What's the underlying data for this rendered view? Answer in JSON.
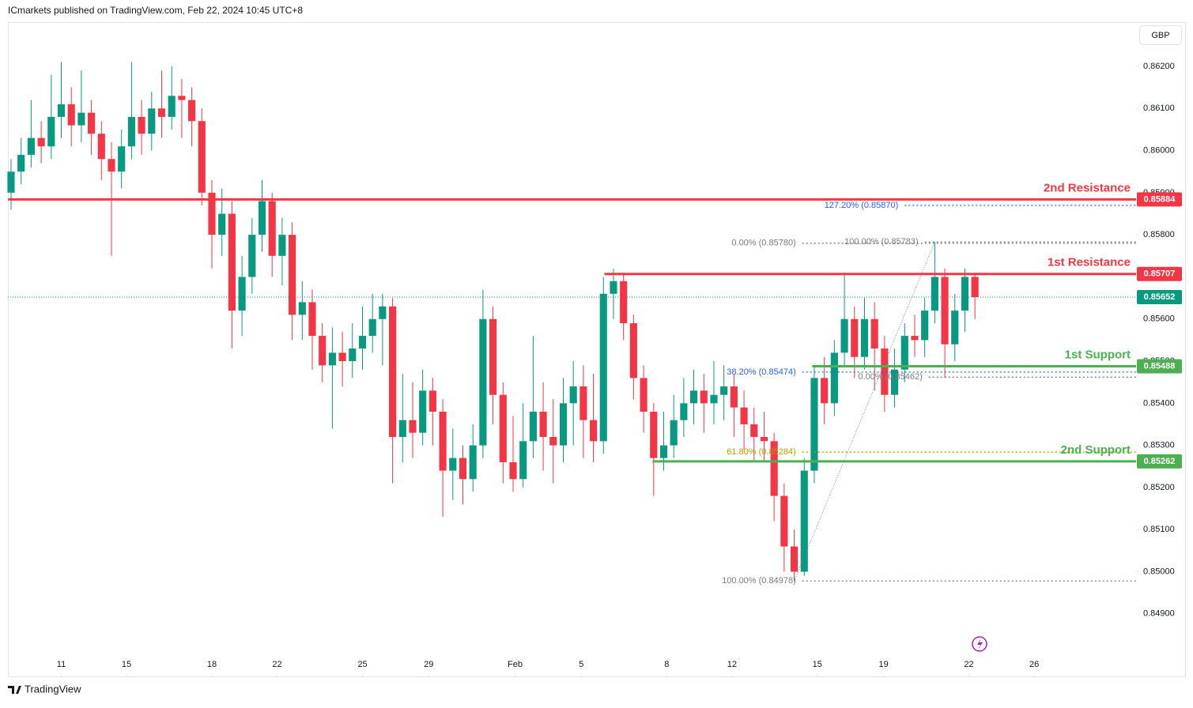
{
  "chart_data": {
    "type": "candlestick",
    "header": "ICmarkets published on TradingView.com, Feb 22, 2024 10:45 UTC+8",
    "currency": "GBP",
    "brand": "TradingView",
    "up_color": "#089981",
    "down_color": "#f23645",
    "ylim": [
      0.84804,
      0.86305
    ],
    "yticks": [
      {
        "value": 0.849,
        "label": "0.84900"
      },
      {
        "value": 0.85,
        "label": "0.85000"
      },
      {
        "value": 0.851,
        "label": "0.85100"
      },
      {
        "value": 0.852,
        "label": "0.85200"
      },
      {
        "value": 0.853,
        "label": "0.85300"
      },
      {
        "value": 0.854,
        "label": "0.85400"
      },
      {
        "value": 0.855,
        "label": "0.85500"
      },
      {
        "value": 0.856,
        "label": "0.85600"
      },
      {
        "value": 0.857,
        "label": "0.85700"
      },
      {
        "value": 0.858,
        "label": "0.85800"
      },
      {
        "value": 0.859,
        "label": "0.85900"
      },
      {
        "value": 0.86,
        "label": "0.86000"
      },
      {
        "value": 0.861,
        "label": "0.86100"
      },
      {
        "value": 0.862,
        "label": "0.86200"
      }
    ],
    "xlim": [
      -0.315,
      112.05
    ],
    "xticks": [
      {
        "value": 5.0,
        "label": "11"
      },
      {
        "value": 11.5,
        "label": "15"
      },
      {
        "value": 20.0,
        "label": "18"
      },
      {
        "value": 26.5,
        "label": "22"
      },
      {
        "value": 35.0,
        "label": "25"
      },
      {
        "value": 41.6,
        "label": "29"
      },
      {
        "value": 50.2,
        "label": "Feb"
      },
      {
        "value": 56.8,
        "label": "5"
      },
      {
        "value": 65.3,
        "label": "8"
      },
      {
        "value": 71.8,
        "label": "12"
      },
      {
        "value": 80.3,
        "label": "15"
      },
      {
        "value": 86.9,
        "label": "19"
      },
      {
        "value": 95.4,
        "label": "22"
      },
      {
        "value": 101.9,
        "label": "26"
      }
    ],
    "ohlc": [
      [
        0.859,
        0.8598,
        0.8586,
        0.8595
      ],
      [
        0.8595,
        0.8603,
        0.8592,
        0.8599
      ],
      [
        0.8599,
        0.8612,
        0.8596,
        0.8603
      ],
      [
        0.8603,
        0.8607,
        0.8597,
        0.8601
      ],
      [
        0.8601,
        0.8618,
        0.8598,
        0.8608
      ],
      [
        0.8608,
        0.8621,
        0.8603,
        0.8611
      ],
      [
        0.8611,
        0.8615,
        0.8601,
        0.8606
      ],
      [
        0.8606,
        0.8619,
        0.8602,
        0.8609
      ],
      [
        0.8609,
        0.8612,
        0.8599,
        0.8604
      ],
      [
        0.8604,
        0.8607,
        0.8593,
        0.8598
      ],
      [
        0.8598,
        0.8602,
        0.8575,
        0.8595
      ],
      [
        0.8595,
        0.8605,
        0.8591,
        0.8601
      ],
      [
        0.8601,
        0.8621,
        0.8598,
        0.8608
      ],
      [
        0.8608,
        0.8612,
        0.8599,
        0.8604
      ],
      [
        0.8604,
        0.8614,
        0.86,
        0.861
      ],
      [
        0.861,
        0.8619,
        0.8603,
        0.8608
      ],
      [
        0.8608,
        0.862,
        0.8605,
        0.8613
      ],
      [
        0.8613,
        0.8617,
        0.8603,
        0.8612
      ],
      [
        0.8612,
        0.8615,
        0.8601,
        0.8607
      ],
      [
        0.8607,
        0.861,
        0.8587,
        0.859
      ],
      [
        0.859,
        0.8593,
        0.8572,
        0.858
      ],
      [
        0.858,
        0.8591,
        0.8575,
        0.8585
      ],
      [
        0.8585,
        0.8588,
        0.8553,
        0.8562
      ],
      [
        0.8562,
        0.8575,
        0.8556,
        0.857
      ],
      [
        0.857,
        0.8584,
        0.8566,
        0.858
      ],
      [
        0.858,
        0.8593,
        0.8576,
        0.8588
      ],
      [
        0.8588,
        0.859,
        0.857,
        0.8575
      ],
      [
        0.8575,
        0.8584,
        0.8568,
        0.858
      ],
      [
        0.858,
        0.8583,
        0.8555,
        0.8561
      ],
      [
        0.8561,
        0.8569,
        0.8555,
        0.8564
      ],
      [
        0.8564,
        0.8567,
        0.8548,
        0.8556
      ],
      [
        0.8556,
        0.8559,
        0.8545,
        0.8549
      ],
      [
        0.8549,
        0.8558,
        0.8534,
        0.8552
      ],
      [
        0.8552,
        0.8557,
        0.8544,
        0.855
      ],
      [
        0.855,
        0.8559,
        0.8546,
        0.8553
      ],
      [
        0.8553,
        0.8563,
        0.8548,
        0.8556
      ],
      [
        0.8556,
        0.8566,
        0.8552,
        0.856
      ],
      [
        0.856,
        0.8566,
        0.8549,
        0.8563
      ],
      [
        0.8563,
        0.8565,
        0.8521,
        0.8532
      ],
      [
        0.8532,
        0.8547,
        0.8526,
        0.8536
      ],
      [
        0.8536,
        0.8545,
        0.8527,
        0.8533
      ],
      [
        0.8533,
        0.8548,
        0.853,
        0.8543
      ],
      [
        0.8543,
        0.8546,
        0.853,
        0.8538
      ],
      [
        0.8538,
        0.8541,
        0.8513,
        0.8524
      ],
      [
        0.8524,
        0.8534,
        0.8517,
        0.8527
      ],
      [
        0.8527,
        0.853,
        0.8516,
        0.8522
      ],
      [
        0.8522,
        0.8535,
        0.8519,
        0.853
      ],
      [
        0.853,
        0.8567,
        0.8527,
        0.856
      ],
      [
        0.856,
        0.8563,
        0.8535,
        0.8542
      ],
      [
        0.8542,
        0.8545,
        0.8521,
        0.8526
      ],
      [
        0.8526,
        0.8537,
        0.8519,
        0.8522
      ],
      [
        0.8522,
        0.854,
        0.852,
        0.8531
      ],
      [
        0.8531,
        0.8556,
        0.8527,
        0.8538
      ],
      [
        0.8538,
        0.8545,
        0.8524,
        0.8532
      ],
      [
        0.8532,
        0.8541,
        0.8521,
        0.853
      ],
      [
        0.853,
        0.8546,
        0.8526,
        0.854
      ],
      [
        0.854,
        0.855,
        0.853,
        0.8544
      ],
      [
        0.8544,
        0.8549,
        0.8527,
        0.8536
      ],
      [
        0.8536,
        0.8547,
        0.8526,
        0.8531
      ],
      [
        0.8531,
        0.857,
        0.8528,
        0.8566
      ],
      [
        0.8566,
        0.8572,
        0.856,
        0.8569
      ],
      [
        0.8569,
        0.8571,
        0.8555,
        0.8559
      ],
      [
        0.8559,
        0.8561,
        0.8541,
        0.8546
      ],
      [
        0.8546,
        0.8549,
        0.8533,
        0.8538
      ],
      [
        0.8538,
        0.854,
        0.8518,
        0.8527
      ],
      [
        0.8527,
        0.8538,
        0.8524,
        0.853
      ],
      [
        0.853,
        0.8542,
        0.8527,
        0.8536
      ],
      [
        0.8536,
        0.8546,
        0.8532,
        0.854
      ],
      [
        0.854,
        0.8548,
        0.8535,
        0.8543
      ],
      [
        0.8543,
        0.8547,
        0.8533,
        0.854
      ],
      [
        0.854,
        0.855,
        0.8535,
        0.8542
      ],
      [
        0.8542,
        0.8549,
        0.8536,
        0.8544
      ],
      [
        0.8544,
        0.8547,
        0.8532,
        0.8539
      ],
      [
        0.8539,
        0.8543,
        0.8529,
        0.8535
      ],
      [
        0.8535,
        0.8539,
        0.8526,
        0.8532
      ],
      [
        0.8532,
        0.8538,
        0.8526,
        0.8531
      ],
      [
        0.8531,
        0.8533,
        0.8512,
        0.8518
      ],
      [
        0.8518,
        0.8521,
        0.85,
        0.8506
      ],
      [
        0.8506,
        0.851,
        0.84978,
        0.85
      ],
      [
        0.85,
        0.8527,
        0.8499,
        0.8524
      ],
      [
        0.8524,
        0.8549,
        0.8521,
        0.8546
      ],
      [
        0.8546,
        0.8551,
        0.8535,
        0.854
      ],
      [
        0.854,
        0.8555,
        0.8537,
        0.8552
      ],
      [
        0.8552,
        0.8571,
        0.8549,
        0.856
      ],
      [
        0.856,
        0.8563,
        0.8546,
        0.8551
      ],
      [
        0.8551,
        0.8565,
        0.8548,
        0.856
      ],
      [
        0.856,
        0.8564,
        0.8543,
        0.8553
      ],
      [
        0.8553,
        0.8556,
        0.8538,
        0.8542
      ],
      [
        0.8542,
        0.8553,
        0.8539,
        0.8548
      ],
      [
        0.8548,
        0.8559,
        0.8545,
        0.8556
      ],
      [
        0.8556,
        0.8561,
        0.8551,
        0.8555
      ],
      [
        0.8555,
        0.8565,
        0.8551,
        0.8562
      ],
      [
        0.8562,
        0.85783,
        0.8559,
        0.857
      ],
      [
        0.857,
        0.8572,
        0.8546,
        0.8554
      ],
      [
        0.8554,
        0.8566,
        0.855,
        0.8562
      ],
      [
        0.8562,
        0.8572,
        0.8557,
        0.857
      ],
      [
        0.857,
        0.8571,
        0.856,
        0.85652
      ]
    ],
    "last_price": 0.85652,
    "last_price_color": "#089981",
    "levels": [
      {
        "name": "2nd Resistance",
        "value": 0.85884,
        "color": "#f23645"
      },
      {
        "name": "1st Resistance",
        "value": 0.85707,
        "color": "#f23645"
      },
      {
        "name": "1st Support",
        "value": 0.85488,
        "color": "#4caf50"
      },
      {
        "name": "2nd Support",
        "value": 0.85262,
        "color": "#4caf50"
      }
    ],
    "fib_levels": [
      {
        "label": "127.20% (0.85870)",
        "value": 0.8587,
        "color": "#2962ff"
      },
      {
        "label": "0.00% (0.85780)",
        "value": 0.8578,
        "color": "#787b86"
      },
      {
        "label": "100.00% (0.85783)",
        "value": 0.85783,
        "color": "#787b86"
      },
      {
        "label": "38.20% (0.85474)",
        "value": 0.85474,
        "color": "#2962ff"
      },
      {
        "label": "0.00% (0.85462)",
        "value": 0.85462,
        "color": "#787b86"
      },
      {
        "label": "61.80% (0.85284)",
        "value": 0.85284,
        "color": "#b89b00"
      },
      {
        "label": "100.00% (0.84978)",
        "value": 0.84978,
        "color": "#787b86"
      }
    ]
  }
}
